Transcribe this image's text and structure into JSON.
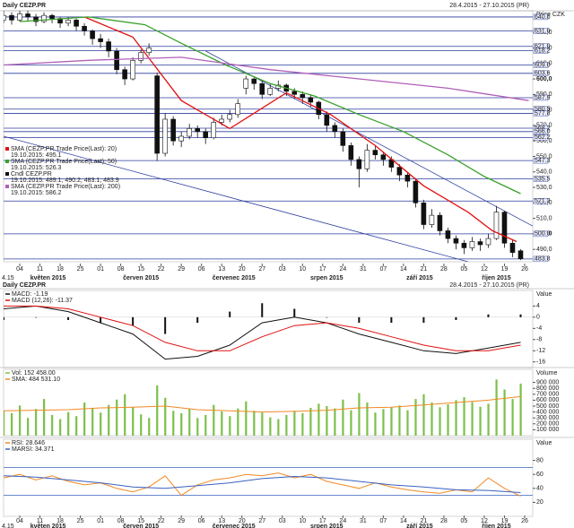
{
  "chart_data": [
    {
      "type": "candlestick",
      "title": "Daily CEZP.PR",
      "subtitle": "28.4.2015 - 27.10.2015 (PR)",
      "y_label": "Price CZK",
      "candle_name": "Cndl CEZP.PR",
      "candle_label": "19.10.2015: 489.1, 490.2, 483.1, 483.9",
      "up_color": "#ffffff",
      "down_color": "#111111",
      "x": [
        0,
        2,
        4,
        6,
        8,
        10,
        12,
        14,
        16,
        18,
        20,
        22,
        24,
        26,
        28,
        30,
        32,
        34,
        36,
        38,
        40,
        42,
        44,
        46,
        48,
        50,
        52,
        54,
        56,
        58,
        60,
        62,
        64,
        66,
        68,
        70,
        72,
        74,
        76,
        78,
        80,
        82,
        84,
        86,
        88,
        90,
        92,
        94,
        96,
        98,
        100,
        102,
        104,
        106,
        108,
        110,
        112,
        114,
        116,
        118,
        120,
        122,
        124,
        126,
        128
      ],
      "open": [
        638,
        641,
        638,
        642,
        640,
        637,
        641,
        639,
        636,
        638,
        634,
        631,
        626,
        624,
        618,
        606,
        600,
        612,
        617,
        602,
        552,
        574,
        560,
        563,
        568,
        566,
        562,
        572,
        574,
        577,
        594,
        600,
        597,
        590,
        594,
        596,
        592,
        590,
        588,
        585,
        577,
        570,
        566,
        557,
        548,
        542,
        554,
        551,
        548,
        543,
        538,
        534,
        520,
        506,
        512,
        502,
        497,
        494,
        491,
        495,
        493,
        497,
        514,
        494,
        489.1
      ],
      "high": [
        644,
        643,
        645,
        644,
        642,
        643,
        642,
        640,
        640,
        639,
        636,
        632,
        629,
        626,
        620,
        608,
        614,
        619,
        623,
        604,
        578,
        576,
        566,
        571,
        570,
        568,
        575,
        577,
        580,
        587,
        602,
        601,
        599,
        597,
        599,
        597,
        594,
        592,
        590,
        586,
        579,
        572,
        568,
        559,
        550,
        558,
        557,
        553,
        550,
        545,
        540,
        536,
        522,
        516,
        514,
        504,
        499,
        496,
        498,
        497,
        500,
        518,
        515,
        496,
        490.2
      ],
      "low": [
        636,
        635,
        637,
        637,
        634,
        636,
        636,
        633,
        634,
        631,
        628,
        622,
        620,
        614,
        603,
        596,
        599,
        610,
        615,
        547,
        550,
        557,
        556,
        561,
        562,
        558,
        561,
        570,
        572,
        575,
        590,
        593,
        587,
        589,
        592,
        589,
        587,
        584,
        582,
        574,
        566,
        562,
        553,
        544,
        530,
        540,
        548,
        544,
        540,
        534,
        530,
        517,
        503,
        504,
        499,
        494,
        490,
        487,
        489,
        489,
        491,
        496,
        491,
        485,
        483.1
      ],
      "close": [
        641,
        638,
        642,
        640,
        637,
        641,
        639,
        636,
        638,
        634,
        631,
        626,
        624,
        618,
        606,
        600,
        612,
        617,
        620,
        552,
        574,
        560,
        563,
        568,
        566,
        562,
        572,
        574,
        577,
        584,
        600,
        597,
        590,
        594,
        596,
        592,
        590,
        588,
        585,
        577,
        570,
        566,
        557,
        548,
        542,
        554,
        551,
        548,
        543,
        538,
        534,
        520,
        506,
        512,
        502,
        497,
        494,
        491,
        495,
        493,
        497,
        514,
        494,
        488,
        483.9
      ],
      "xlim": [
        0,
        131
      ],
      "xticks": [
        {
          "value": 4,
          "label": "04"
        },
        {
          "value": 9,
          "label": "11"
        },
        {
          "value": 14,
          "label": "18"
        },
        {
          "value": 19,
          "label": "25"
        },
        {
          "value": 24,
          "label": "01"
        },
        {
          "value": 29,
          "label": "08"
        },
        {
          "value": 34,
          "label": "15"
        },
        {
          "value": 39,
          "label": "22"
        },
        {
          "value": 44,
          "label": "29"
        },
        {
          "value": 49,
          "label": "06"
        },
        {
          "value": 54,
          "label": "13"
        },
        {
          "value": 59,
          "label": "20"
        },
        {
          "value": 64,
          "label": "27"
        },
        {
          "value": 69,
          "label": "03"
        },
        {
          "value": 74,
          "label": "10"
        },
        {
          "value": 79,
          "label": "17"
        },
        {
          "value": 84,
          "label": "24"
        },
        {
          "value": 89,
          "label": "31"
        },
        {
          "value": 94,
          "label": "07"
        },
        {
          "value": 99,
          "label": "14"
        },
        {
          "value": 104,
          "label": "21"
        },
        {
          "value": 109,
          "label": "28"
        },
        {
          "value": 114,
          "label": "05"
        },
        {
          "value": 119,
          "label": "12"
        },
        {
          "value": 124,
          "label": "19"
        },
        {
          "value": 129,
          "label": "26"
        }
      ],
      "months": [
        {
          "value": 11,
          "label": "květen 2015"
        },
        {
          "value": 34,
          "label": "červen 2015"
        },
        {
          "value": 57,
          "label": "červenec 2015"
        },
        {
          "value": 80,
          "label": "srpen 2015"
        },
        {
          "value": 103,
          "label": "září 2015"
        },
        {
          "value": 122,
          "label": "říjen 2015"
        }
      ],
      "period_label": "4.15",
      "ylim": [
        482,
        644
      ],
      "yticks": [
        {
          "value": 490,
          "label": "490,0"
        },
        {
          "value": 500,
          "label": "500,0"
        },
        {
          "value": 510,
          "label": "510,0"
        },
        {
          "value": 520,
          "label": "520,0"
        },
        {
          "value": 530,
          "label": "530,0"
        },
        {
          "value": 540,
          "label": "540,0"
        },
        {
          "value": 550,
          "label": "550,0"
        },
        {
          "value": 560,
          "label": "560,0"
        },
        {
          "value": 570,
          "label": "570,0"
        },
        {
          "value": 580,
          "label": "580,0"
        },
        {
          "value": 590,
          "label": "590,0"
        },
        {
          "value": 600,
          "label": "600,0"
        },
        {
          "value": 610,
          "label": "610,0"
        },
        {
          "value": 620,
          "label": "620,0"
        },
        {
          "value": 630,
          "label": "630,0"
        }
      ],
      "level_color": "#2b3c9e",
      "levels": [
        {
          "value": 640,
          "label": "640.0"
        },
        {
          "value": 631,
          "label": "631.0"
        },
        {
          "value": 621,
          "label": "621.0"
        },
        {
          "value": 618.2,
          "label": "618.2"
        },
        {
          "value": 609,
          "label": "609.0"
        },
        {
          "value": 603.6,
          "label": "603.6"
        },
        {
          "value": 587.9,
          "label": "587.9"
        },
        {
          "value": 580.5,
          "label": "580.5"
        },
        {
          "value": 577.8,
          "label": "577.8"
        },
        {
          "value": 568.2,
          "label": "568.2"
        },
        {
          "value": 566,
          "label": "566.0"
        },
        {
          "value": 562.2,
          "label": "562.2"
        },
        {
          "value": 547.3,
          "label": "547.3"
        },
        {
          "value": 535.5,
          "label": "535.5"
        },
        {
          "value": 521.2,
          "label": "521.2"
        },
        {
          "value": 500,
          "label": "500.0"
        },
        {
          "value": 483.8,
          "label": "483.8"
        }
      ],
      "overlays": [
        {
          "name": "SMA (CEZP.PR Trade Price(Last): 20)",
          "label": "19.10.2015: 495.1",
          "color": "#e01010",
          "x": [
            20,
            32,
            44,
            56,
            70,
            81,
            92,
            104,
            115,
            121,
            127
          ],
          "values": [
            640,
            627,
            586,
            568,
            591,
            577,
            557,
            531,
            514,
            502,
            495
          ]
        },
        {
          "name": "SMA (CEZP.PR Trade Price(Last): 50)",
          "label": "19.10.2015: 526.3",
          "color": "#3aa02a",
          "x": [
            4,
            21,
            35,
            44,
            55,
            66,
            77,
            88,
            99,
            110,
            119,
            128
          ],
          "values": [
            637,
            640,
            635,
            623,
            609,
            597,
            589,
            577,
            566,
            551,
            537,
            526
          ]
        },
        {
          "name": "SMA (CEZP.PR Trade Price(Last): 200)",
          "label": "19.10.2015: 586.2",
          "color": "#b060b8",
          "x": [
            0,
            21,
            44,
            66,
            88,
            110,
            130
          ],
          "values": [
            609,
            612,
            614,
            606,
            600,
            594,
            586
          ]
        }
      ],
      "trendlines": [
        {
          "color": "#3040a0",
          "x": [
            0,
            115
          ],
          "values": [
            563,
            482
          ]
        },
        {
          "color": "#3040a0",
          "x": [
            50,
            131
          ],
          "values": [
            618,
            505
          ]
        }
      ]
    },
    {
      "type": "macd",
      "title": "Daily CEZP.PR",
      "subtitle": "28.4.2015 - 27.10.2015 (PR)",
      "y_label": "Value",
      "ylim": [
        -18,
        7
      ],
      "yticks": [
        4,
        0,
        -4,
        -8,
        -12,
        -16
      ],
      "x": [
        0,
        8,
        16,
        24,
        32,
        40,
        48,
        56,
        64,
        72,
        80,
        88,
        96,
        104,
        112,
        120,
        128
      ],
      "series": [
        {
          "name": "MACD: -1.19",
          "color": "#111111",
          "values": [
            3,
            4,
            2,
            -2,
            -6,
            -15,
            -14,
            -10,
            -2,
            0,
            -2,
            -6,
            -9,
            -12,
            -13,
            -11,
            -9
          ]
        },
        {
          "name": "MACD (12,26): -11.37",
          "color": "#e01010",
          "values": [
            4,
            4,
            3,
            0,
            -3,
            -9,
            -12,
            -12,
            -7,
            -3,
            -2,
            -4,
            -7,
            -10,
            -12,
            -12,
            -10
          ]
        }
      ],
      "histogram": {
        "color": "#111111",
        "values": [
          -1,
          0,
          -1,
          -2,
          -3,
          -6,
          -2,
          2,
          5,
          3,
          0,
          -2,
          -2,
          -2,
          -1,
          1,
          1
        ]
      }
    },
    {
      "type": "volume",
      "y_label": "Volume",
      "ylim": [
        0,
        1000000
      ],
      "yticks": [
        {
          "value": 100000,
          "label": "100 000"
        },
        {
          "value": 200000,
          "label": "200 000"
        },
        {
          "value": 300000,
          "label": "300 000"
        },
        {
          "value": 400000,
          "label": "400 000"
        },
        {
          "value": 500000,
          "label": "500 000"
        },
        {
          "value": 600000,
          "label": "600 000"
        },
        {
          "value": 700000,
          "label": "700 000"
        },
        {
          "value": 800000,
          "label": "800 000"
        },
        {
          "value": 900000,
          "label": "900 000"
        }
      ],
      "series": [
        {
          "name": "Vol: 152 458.00",
          "color": "#7cc04a",
          "x": [
            0,
            2,
            4,
            6,
            8,
            10,
            12,
            14,
            16,
            18,
            20,
            22,
            24,
            26,
            28,
            30,
            32,
            34,
            36,
            38,
            40,
            42,
            44,
            46,
            48,
            50,
            52,
            54,
            56,
            58,
            60,
            62,
            64,
            66,
            68,
            70,
            72,
            74,
            76,
            78,
            80,
            82,
            84,
            86,
            88,
            90,
            92,
            94,
            96,
            98,
            100,
            102,
            104,
            106,
            108,
            110,
            112,
            114,
            116,
            118,
            120,
            122,
            124,
            126,
            128
          ],
          "values": [
            420000,
            380000,
            510000,
            300000,
            450000,
            620000,
            350000,
            280000,
            400000,
            330000,
            560000,
            470000,
            390000,
            520000,
            610000,
            700000,
            480000,
            360000,
            300000,
            850000,
            640000,
            420000,
            380000,
            450000,
            300000,
            350000,
            520000,
            410000,
            330000,
            460000,
            580000,
            420000,
            390000,
            310000,
            280000,
            350000,
            420000,
            380000,
            470000,
            540000,
            500000,
            460000,
            610000,
            430000,
            720000,
            560000,
            390000,
            450000,
            480000,
            510000,
            430000,
            620000,
            700000,
            560000,
            480000,
            530000,
            600000,
            650000,
            570000,
            490000,
            540000,
            950000,
            780000,
            620000,
            880000
          ]
        },
        {
          "name": "SMA: 484 531.10",
          "color": "#f08a24",
          "x": [
            0,
            8,
            16,
            24,
            32,
            40,
            48,
            56,
            64,
            72,
            80,
            88,
            96,
            104,
            112,
            120,
            128
          ],
          "values": [
            420000,
            430000,
            440000,
            470000,
            480000,
            500000,
            440000,
            420000,
            400000,
            410000,
            430000,
            470000,
            480000,
            520000,
            560000,
            600000,
            660000
          ]
        }
      ]
    },
    {
      "type": "rsi",
      "y_label": "Value",
      "ylim": [
        0,
        100
      ],
      "yticks": [
        20,
        40,
        60,
        80
      ],
      "levels": [
        70,
        30
      ],
      "level_color": "#3a60c0",
      "series": [
        {
          "name": "RSI: 28.646",
          "color": "#f08a24",
          "x": [
            0,
            4,
            8,
            12,
            16,
            20,
            24,
            28,
            32,
            36,
            40,
            44,
            48,
            52,
            56,
            60,
            64,
            68,
            72,
            76,
            80,
            84,
            88,
            92,
            96,
            100,
            104,
            108,
            112,
            116,
            120,
            124,
            128
          ],
          "values": [
            55,
            60,
            52,
            58,
            50,
            45,
            48,
            40,
            35,
            42,
            58,
            30,
            45,
            52,
            55,
            60,
            58,
            62,
            55,
            60,
            50,
            45,
            40,
            48,
            42,
            38,
            35,
            33,
            38,
            35,
            55,
            40,
            29
          ]
        },
        {
          "name": "MARSI: 34.371",
          "color": "#3a60c0",
          "x": [
            0,
            8,
            16,
            24,
            32,
            40,
            48,
            56,
            64,
            72,
            80,
            88,
            96,
            104,
            112,
            120,
            128
          ],
          "values": [
            58,
            56,
            52,
            48,
            42,
            40,
            44,
            48,
            54,
            57,
            55,
            50,
            45,
            42,
            38,
            37,
            34
          ]
        }
      ]
    }
  ]
}
